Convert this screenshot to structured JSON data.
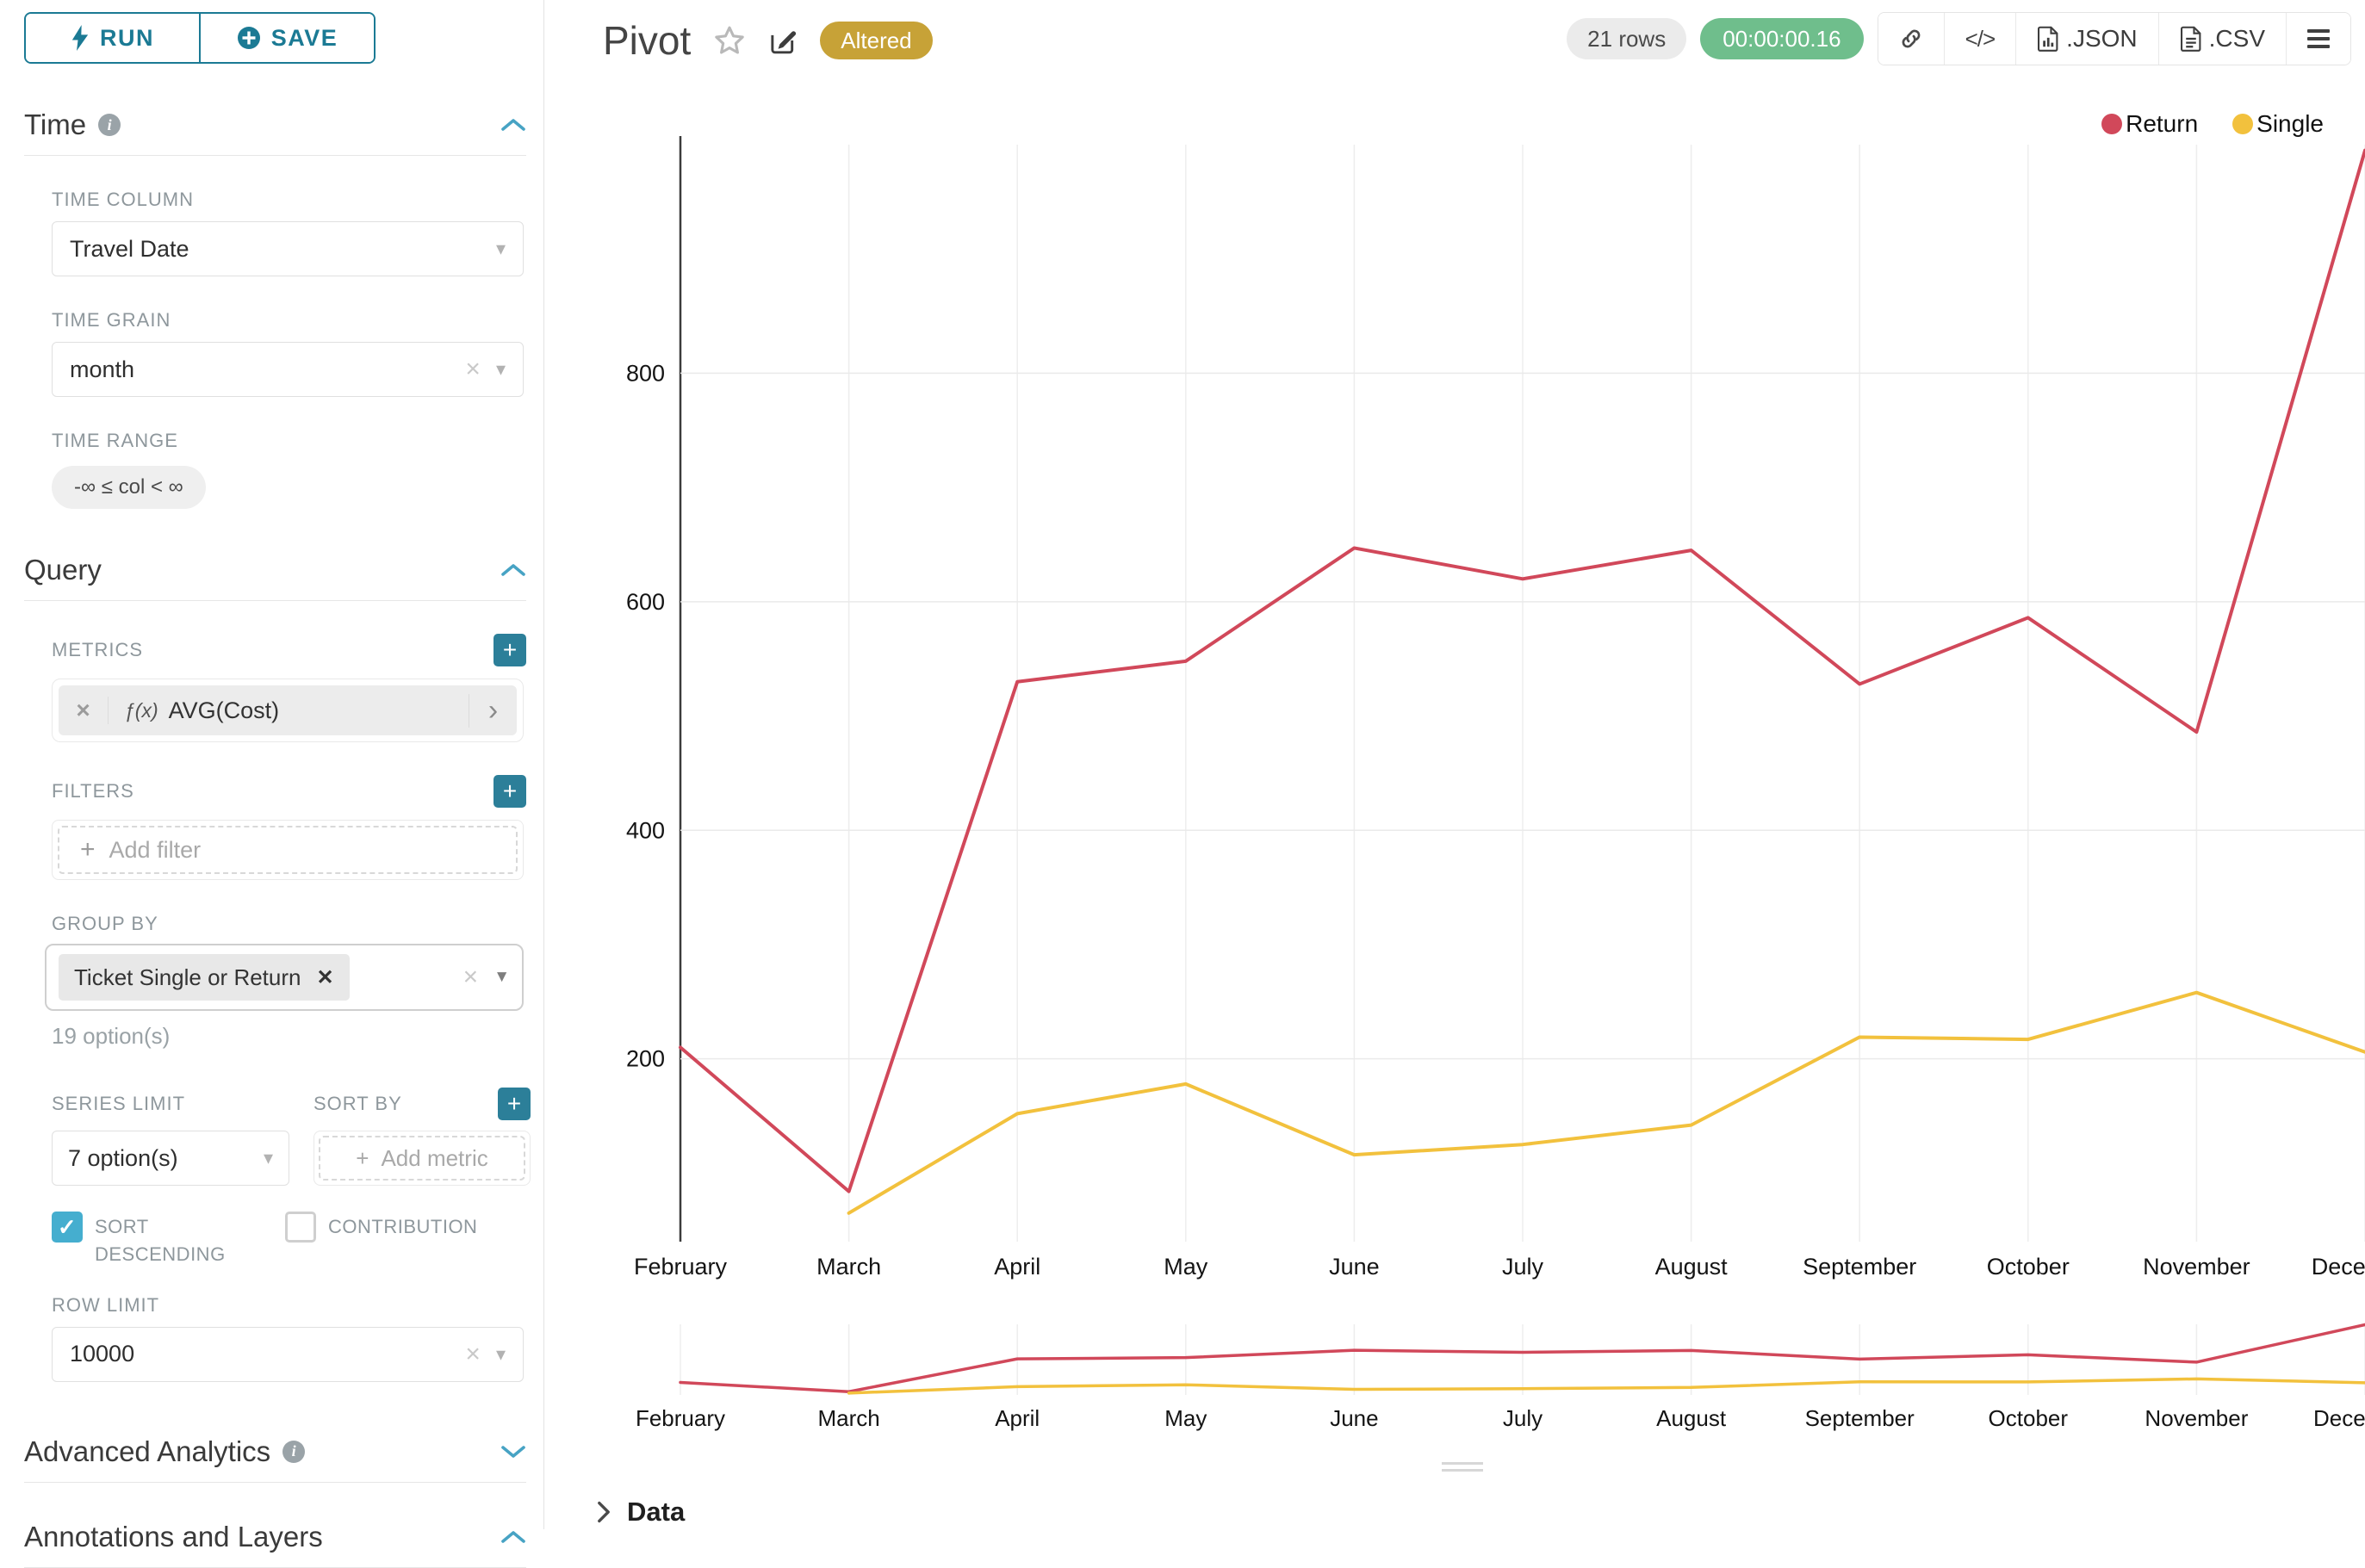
{
  "toolbar": {
    "run": "RUN",
    "save": "SAVE"
  },
  "controls": {
    "time": {
      "title": "Time",
      "time_column_label": "TIME COLUMN",
      "time_column_value": "Travel Date",
      "time_grain_label": "TIME GRAIN",
      "time_grain_value": "month",
      "time_range_label": "TIME RANGE",
      "time_range_value": "-∞ ≤ col < ∞"
    },
    "query": {
      "title": "Query",
      "metrics_label": "METRICS",
      "metric_prefix": "ƒ(x)",
      "metric_value": "AVG(Cost)",
      "filters_label": "FILTERS",
      "add_filter_placeholder": "Add filter",
      "group_by_label": "GROUP BY",
      "group_by_value": "Ticket Single or Return",
      "group_by_hint": "19 option(s)",
      "series_limit_label": "SERIES LIMIT",
      "series_limit_value": "7 option(s)",
      "sort_by_label": "SORT BY",
      "add_metric_placeholder": "Add metric",
      "sort_descending_label": "SORT DESCENDING",
      "contribution_label": "CONTRIBUTION",
      "row_limit_label": "ROW LIMIT",
      "row_limit_value": "10000"
    },
    "advanced_analytics_title": "Advanced Analytics",
    "annotations_title": "Annotations and Layers"
  },
  "header": {
    "title": "Pivot",
    "badge": "Altered",
    "row_count": "21 rows",
    "timer": "00:00:00.16",
    "export_json": ".JSON",
    "export_csv": ".CSV",
    "code_glyph": "</>"
  },
  "data_panel": {
    "title": "Data"
  },
  "chart_data": {
    "type": "line",
    "x": [
      "February",
      "March",
      "April",
      "May",
      "June",
      "July",
      "August",
      "September",
      "October",
      "November",
      "December"
    ],
    "series": [
      {
        "name": "Return",
        "color": "#d1485a",
        "values": [
          210,
          84,
          530,
          548,
          647,
          620,
          645,
          528,
          586,
          486,
          995
        ]
      },
      {
        "name": "Single",
        "color": "#f2c13d",
        "values": [
          null,
          65,
          152,
          178,
          116,
          125,
          142,
          219,
          217,
          258,
          206
        ]
      }
    ],
    "title": "Pivot",
    "xlabel": "",
    "ylabel": "",
    "yticks": [
      200,
      400,
      600,
      800
    ],
    "ylim": [
      40,
      1000
    ],
    "grid": true,
    "legend_position": "top-right",
    "has_range_selector": true
  }
}
